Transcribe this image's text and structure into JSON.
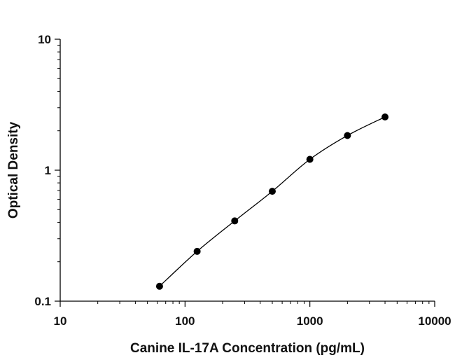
{
  "chart_data": {
    "type": "scatter",
    "title": "",
    "xlabel": "Canine IL-17A Concentration (pg/mL)",
    "ylabel": "Optical Density",
    "xscale": "log",
    "yscale": "log",
    "xlim": [
      10,
      10000
    ],
    "ylim": [
      0.1,
      10
    ],
    "x_ticks": [
      "10",
      "100",
      "1000",
      "10000"
    ],
    "y_ticks": [
      "0.1",
      "1",
      "10"
    ],
    "grid": false,
    "legend": "none",
    "series": [
      {
        "x": [
          62.5,
          125,
          250,
          500,
          1000,
          2000,
          4000
        ],
        "y": [
          0.13,
          0.24,
          0.41,
          0.69,
          1.21,
          1.84,
          2.55
        ],
        "fit": "4PL curve"
      }
    ],
    "colors": {
      "points": "#000000",
      "curve": "#000000",
      "axes": "#000000"
    }
  }
}
